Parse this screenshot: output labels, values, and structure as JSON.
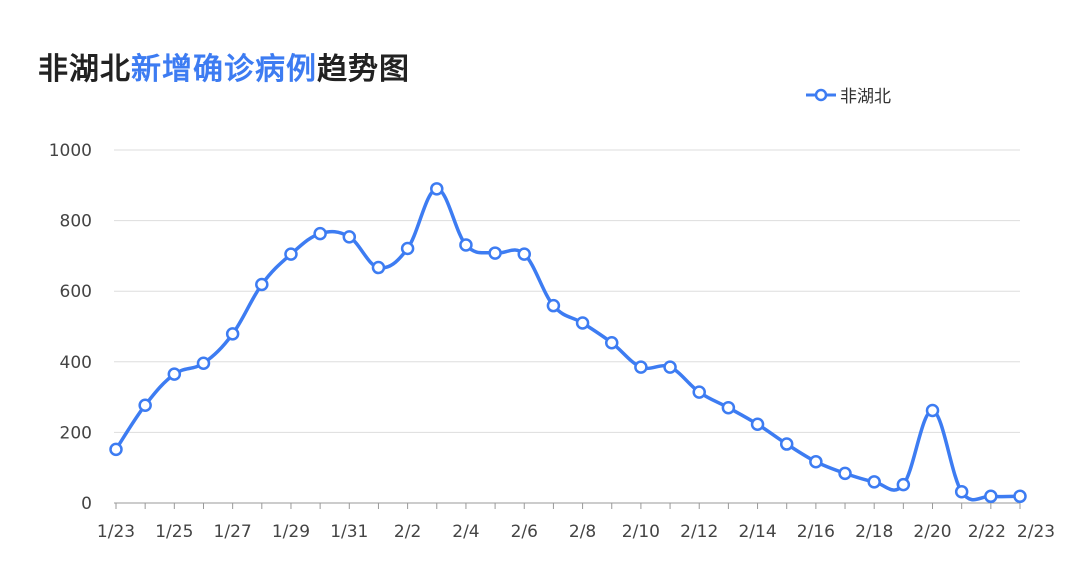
{
  "title": {
    "prefix": "非湖北",
    "highlight": "新增确诊病例",
    "suffix": "趋势图"
  },
  "colors": {
    "series": "#3d7cf2",
    "grid": "#dddddd",
    "axis": "#999999"
  },
  "chart_data": {
    "type": "line",
    "smooth": true,
    "x": [
      "1/23",
      "1/24",
      "1/25",
      "1/26",
      "1/27",
      "1/28",
      "1/29",
      "1/30",
      "1/31",
      "2/1",
      "2/2",
      "2/3",
      "2/4",
      "2/5",
      "2/6",
      "2/7",
      "2/8",
      "2/9",
      "2/10",
      "2/11",
      "2/12",
      "2/13",
      "2/14",
      "2/15",
      "2/16",
      "2/17",
      "2/18",
      "2/19",
      "2/20",
      "2/21",
      "2/22",
      "2/23"
    ],
    "x_tick_labels": [
      "1/23",
      "1/25",
      "1/27",
      "1/29",
      "1/31",
      "2/2",
      "2/4",
      "2/6",
      "2/8",
      "2/10",
      "2/12",
      "2/14",
      "2/16",
      "2/18",
      "2/20",
      "2/22",
      "2/23"
    ],
    "series": [
      {
        "name": "非湖北",
        "values": [
          152,
          277,
          365,
          396,
          479,
          619,
          705,
          763,
          754,
          667,
          721,
          890,
          731,
          708,
          705,
          559,
          510,
          454,
          385,
          385,
          314,
          270,
          223,
          167,
          117,
          84,
          60,
          52,
          262,
          32,
          19,
          19
        ]
      }
    ],
    "ylim": [
      0,
      1000
    ],
    "y_ticks": [
      0,
      200,
      400,
      600,
      800,
      1000
    ],
    "grid": true,
    "legend_position": "top-right",
    "xlabel": "",
    "ylabel": ""
  }
}
